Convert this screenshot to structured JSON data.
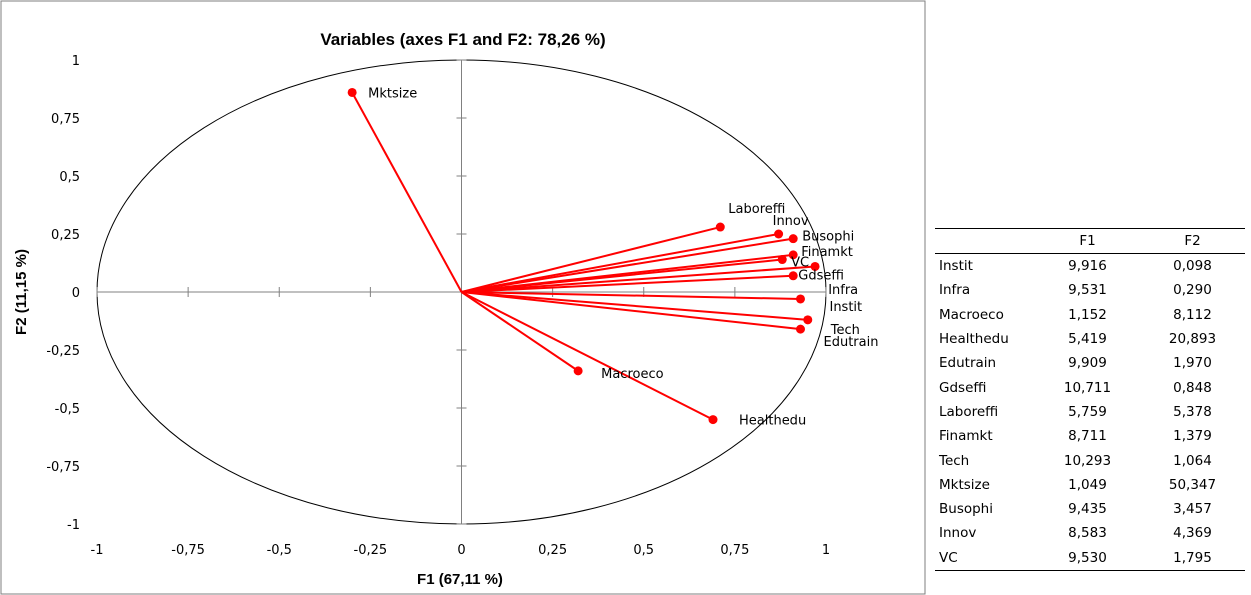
{
  "chart_data": {
    "type": "scatter",
    "title": "Variables (axes F1 and F2: 78,26 %)",
    "xlabel": "F1 (67,11 %)",
    "ylabel": "F2 (11,15 %)",
    "xlim": [
      -1,
      1
    ],
    "ylim": [
      -1,
      1
    ],
    "x_ticks": [
      "-1",
      "-0,75",
      "-0,5",
      "-0,25",
      "0",
      "0,25",
      "0,5",
      "0,75",
      "1"
    ],
    "y_ticks": [
      "1",
      "0,75",
      "0,5",
      "0,25",
      "0",
      "-0,25",
      "-0,5",
      "-0,75",
      "-1"
    ],
    "tick_values": [
      -1,
      -0.75,
      -0.5,
      -0.25,
      0,
      0.25,
      0.5,
      0.75,
      1
    ],
    "grid": false,
    "correlation_circle": true,
    "series_color": "#ff0000",
    "points": [
      {
        "label": "Mktsize",
        "x": -0.3,
        "y": 0.86
      },
      {
        "label": "Laboreffi",
        "x": 0.71,
        "y": 0.28
      },
      {
        "label": "Innov",
        "x": 0.87,
        "y": 0.25
      },
      {
        "label": "Busophi",
        "x": 0.91,
        "y": 0.23
      },
      {
        "label": "Finamkt",
        "x": 0.91,
        "y": 0.16
      },
      {
        "label": "VC",
        "x": 0.97,
        "y": 0.11
      },
      {
        "label": "Gdseffi",
        "x": 0.88,
        "y": 0.14
      },
      {
        "label": "Infra",
        "x": 0.91,
        "y": 0.07
      },
      {
        "label": "Instit",
        "x": 0.93,
        "y": -0.03
      },
      {
        "label": "Tech",
        "x": 0.95,
        "y": -0.12
      },
      {
        "label": "Edutrain",
        "x": 0.93,
        "y": -0.16
      },
      {
        "label": "Macroeco",
        "x": 0.32,
        "y": -0.34
      },
      {
        "label": "Healthedu",
        "x": 0.69,
        "y": -0.55
      }
    ]
  },
  "table": {
    "columns": [
      "",
      "F1",
      "F2"
    ],
    "rows": [
      [
        "Instit",
        "9,916",
        "0,098"
      ],
      [
        "Infra",
        "9,531",
        "0,290"
      ],
      [
        "Macroeco",
        "1,152",
        "8,112"
      ],
      [
        "Healthedu",
        "5,419",
        "20,893"
      ],
      [
        "Edutrain",
        "9,909",
        "1,970"
      ],
      [
        "Gdseffi",
        "10,711",
        "0,848"
      ],
      [
        "Laboreffi",
        "5,759",
        "5,378"
      ],
      [
        "Finamkt",
        "8,711",
        "1,379"
      ],
      [
        "Tech",
        "10,293",
        "1,064"
      ],
      [
        "Mktsize",
        "1,049",
        "50,347"
      ],
      [
        "Busophi",
        "9,435",
        "3,457"
      ],
      [
        "Innov",
        "8,583",
        "4,369"
      ],
      [
        "VC",
        "9,530",
        "1,795"
      ]
    ]
  }
}
